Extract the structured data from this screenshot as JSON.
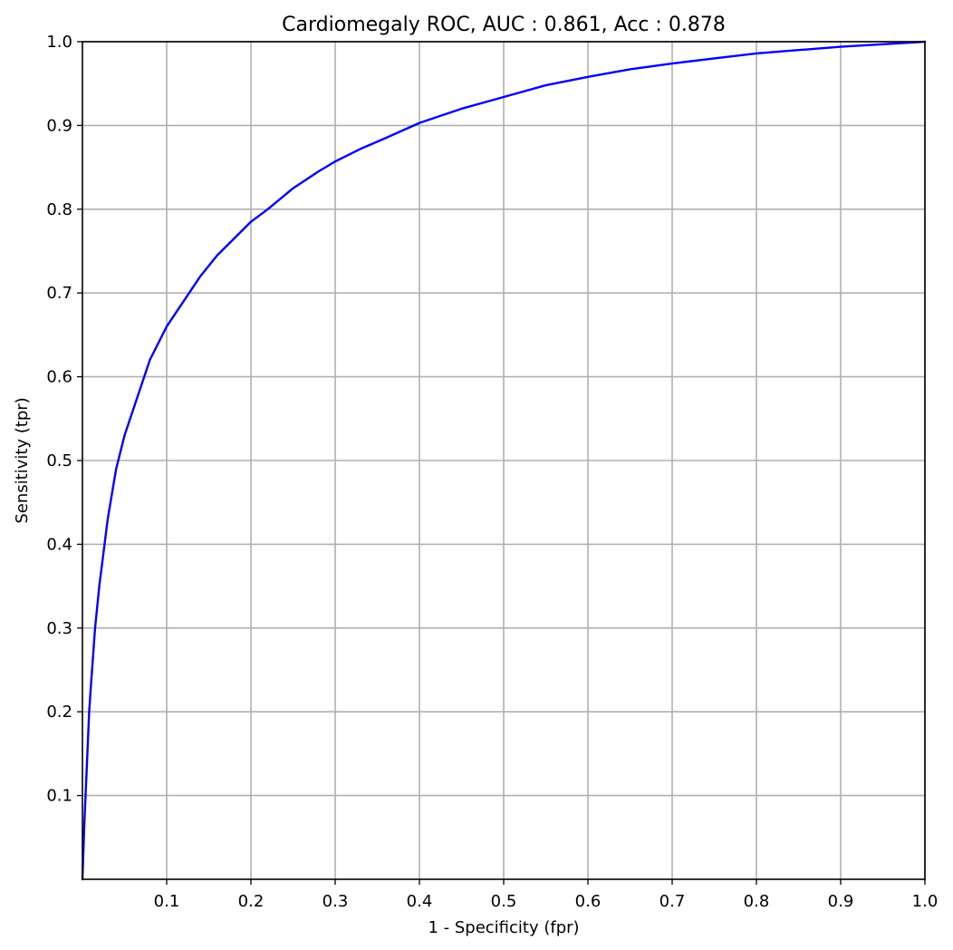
{
  "chart_data": {
    "type": "line",
    "title": "Cardiomegaly ROC, AUC : 0.861, Acc : 0.878",
    "xlabel": "1 - Specificity (fpr)",
    "ylabel": "Sensitivity (tpr)",
    "xlim": [
      0,
      1
    ],
    "ylim": [
      0,
      1
    ],
    "x_ticks": [
      0.1,
      0.2,
      0.3,
      0.4,
      0.5,
      0.6,
      0.7,
      0.8,
      0.9,
      1.0
    ],
    "x_tick_labels": [
      "0.1",
      "0.2",
      "0.3",
      "0.4",
      "0.5",
      "0.6",
      "0.7",
      "0.8",
      "0.9",
      "1.0"
    ],
    "y_ticks": [
      0.1,
      0.2,
      0.3,
      0.4,
      0.5,
      0.6,
      0.7,
      0.8,
      0.9,
      1.0
    ],
    "y_tick_labels": [
      "0.1",
      "0.2",
      "0.3",
      "0.4",
      "0.5",
      "0.6",
      "0.7",
      "0.8",
      "0.9",
      "1.0"
    ],
    "grid": true,
    "series": [
      {
        "color": "#0000ff",
        "x": [
          0.0,
          0.002,
          0.005,
          0.008,
          0.01,
          0.015,
          0.02,
          0.025,
          0.03,
          0.035,
          0.04,
          0.05,
          0.06,
          0.07,
          0.08,
          0.09,
          0.1,
          0.12,
          0.14,
          0.16,
          0.18,
          0.2,
          0.22,
          0.25,
          0.28,
          0.3,
          0.33,
          0.36,
          0.4,
          0.45,
          0.5,
          0.55,
          0.6,
          0.65,
          0.7,
          0.75,
          0.8,
          0.85,
          0.9,
          0.95,
          1.0
        ],
        "y": [
          0.0,
          0.06,
          0.13,
          0.2,
          0.23,
          0.3,
          0.35,
          0.39,
          0.43,
          0.46,
          0.49,
          0.53,
          0.56,
          0.59,
          0.62,
          0.64,
          0.66,
          0.69,
          0.72,
          0.745,
          0.765,
          0.785,
          0.8,
          0.825,
          0.845,
          0.857,
          0.872,
          0.885,
          0.903,
          0.92,
          0.934,
          0.948,
          0.958,
          0.967,
          0.974,
          0.98,
          0.986,
          0.99,
          0.994,
          0.997,
          1.0
        ]
      }
    ]
  }
}
